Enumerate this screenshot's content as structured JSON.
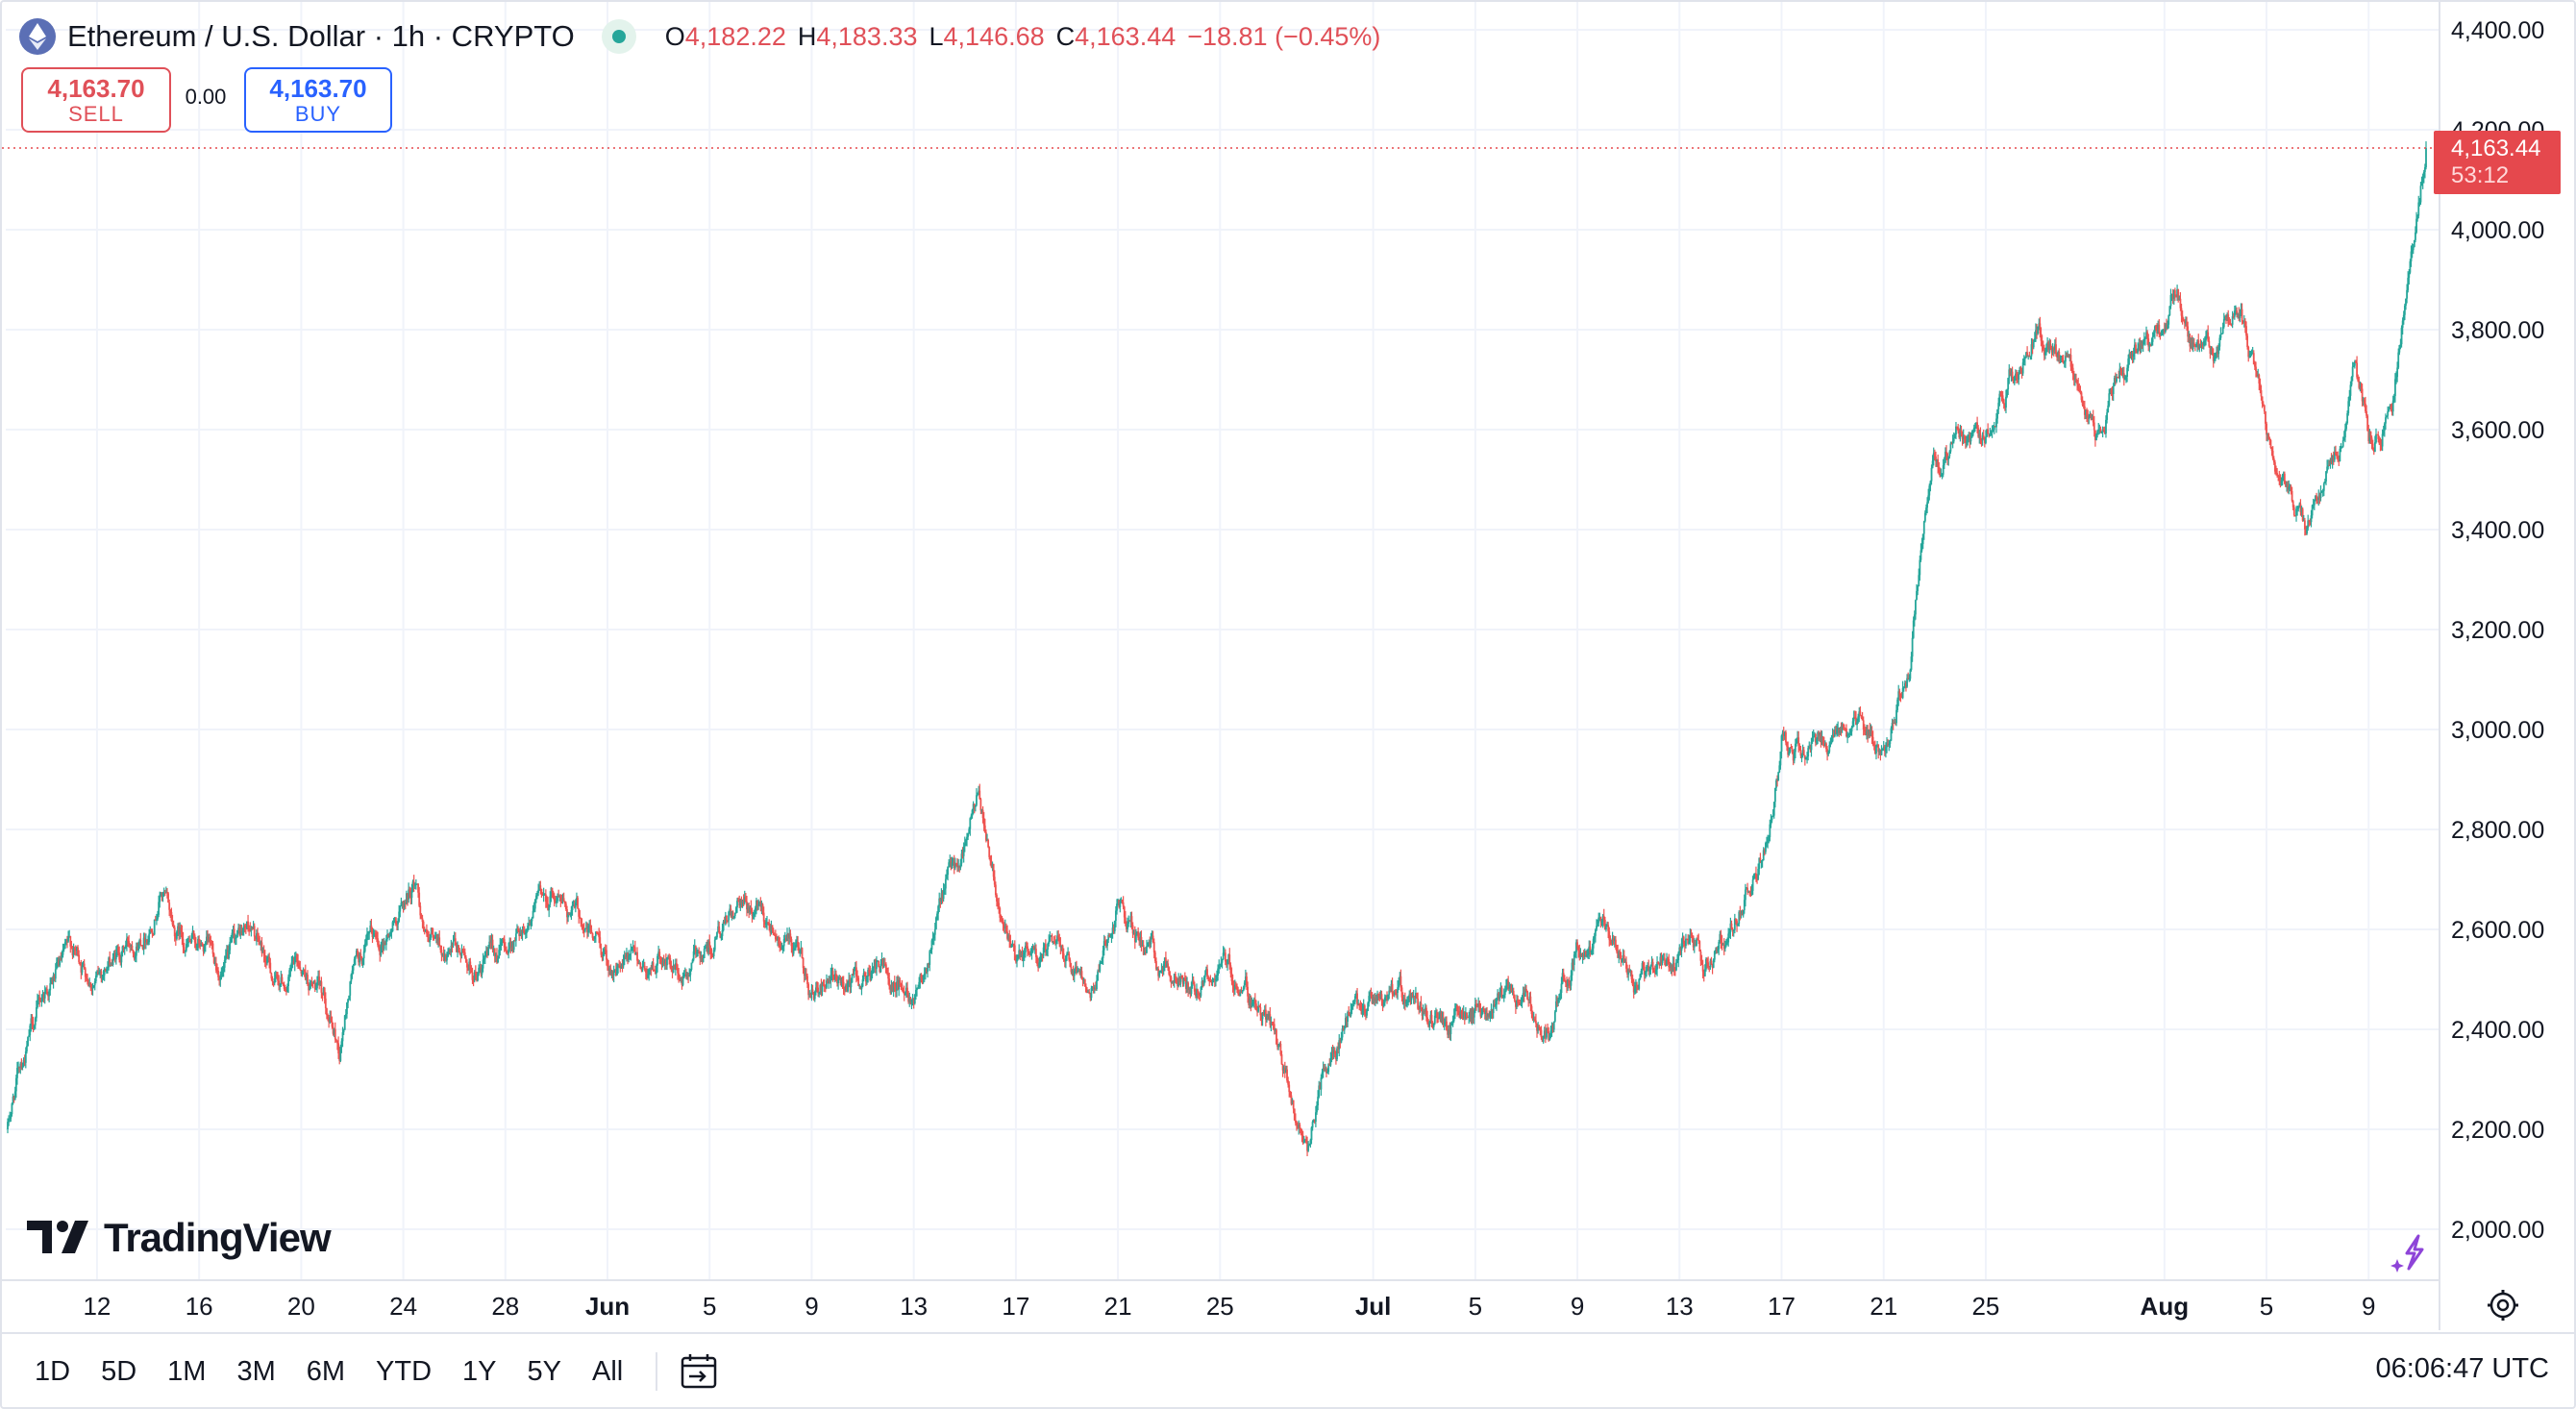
{
  "header": {
    "symbol_title": "Ethereum / U.S. Dollar · 1h · CRYPTO",
    "open_label": "O",
    "open": "4,182.22",
    "high_label": "H",
    "high": "4,183.33",
    "low_label": "L",
    "low": "4,146.68",
    "close_label": "C",
    "close": "4,163.44",
    "change": "−18.81 (−0.45%)"
  },
  "trade": {
    "sell_price": "4,163.70",
    "sell_label": "SELL",
    "spread": "0.00",
    "buy_price": "4,163.70",
    "buy_label": "BUY"
  },
  "price_tag": {
    "price": "4,163.44",
    "countdown": "53:12"
  },
  "logo": {
    "text": "TradingView"
  },
  "bottom_bar": {
    "ranges": [
      "1D",
      "5D",
      "1M",
      "3M",
      "6M",
      "YTD",
      "1Y",
      "5Y",
      "All"
    ],
    "clock": "06:06:47 UTC"
  },
  "colors": {
    "up": "#26a69a",
    "down": "#ef5350",
    "price_line": "#e5484d",
    "buy": "#2962ff"
  },
  "icons": {
    "symbol": "ethereum-icon",
    "live": "market-open-dot",
    "calendar": "goto-date-icon",
    "settings": "settings-gear-icon",
    "spark": "ai-sparkle-icon"
  },
  "chart_data": {
    "type": "candlestick",
    "interval": "1h",
    "ylim": [
      1950,
      4420
    ],
    "y_ticks": [
      2000,
      2200,
      2400,
      2600,
      2800,
      3000,
      3200,
      3400,
      3600,
      3800,
      4000,
      4200,
      4400
    ],
    "y_tick_labels": [
      "2,000.00",
      "2,200.00",
      "2,400.00",
      "2,600.00",
      "2,800.00",
      "3,000.00",
      "3,200.00",
      "3,400.00",
      "3,600.00",
      "3,800.00",
      "4,000.00",
      "4,200.00",
      "4,400.00"
    ],
    "x_tick_labels": [
      "12",
      "16",
      "20",
      "24",
      "28",
      "Jun",
      "5",
      "9",
      "13",
      "17",
      "21",
      "25",
      "Jul",
      "5",
      "9",
      "13",
      "17",
      "21",
      "25",
      "Aug",
      "5",
      "9"
    ],
    "x_tick_dates": [
      "2025-05-12",
      "2025-05-16",
      "2025-05-20",
      "2025-05-24",
      "2025-05-28",
      "2025-06-01",
      "2025-06-05",
      "2025-06-09",
      "2025-06-13",
      "2025-06-17",
      "2025-06-21",
      "2025-06-25",
      "2025-07-01",
      "2025-07-05",
      "2025-07-09",
      "2025-07-13",
      "2025-07-17",
      "2025-07-21",
      "2025-07-25",
      "2025-08-01",
      "2025-08-05",
      "2025-08-09"
    ],
    "x_range": [
      "2025-05-08T12:00",
      "2025-08-11T06:00"
    ],
    "last_price": 4163.44,
    "close_path": [
      [
        "2025-05-08T12:00",
        2200
      ],
      [
        "2025-05-09T00:00",
        2330
      ],
      [
        "2025-05-10T00:00",
        2480
      ],
      [
        "2025-05-11T00:00",
        2540
      ],
      [
        "2025-05-12T00:00",
        2510
      ],
      [
        "2025-05-13T00:00",
        2560
      ],
      [
        "2025-05-14T00:00",
        2620
      ],
      [
        "2025-05-14T12:00",
        2700
      ],
      [
        "2025-05-15T00:00",
        2600
      ],
      [
        "2025-05-16T00:00",
        2560
      ],
      [
        "2025-05-17T00:00",
        2520
      ],
      [
        "2025-05-18T00:00",
        2600
      ],
      [
        "2025-05-19T00:00",
        2490
      ],
      [
        "2025-05-20T00:00",
        2520
      ],
      [
        "2025-05-21T00:00",
        2450
      ],
      [
        "2025-05-21T12:00",
        2360
      ],
      [
        "2025-05-22T00:00",
        2520
      ],
      [
        "2025-05-23T00:00",
        2570
      ],
      [
        "2025-05-24T00:00",
        2650
      ],
      [
        "2025-05-24T12:00",
        2700
      ],
      [
        "2025-05-25T00:00",
        2560
      ],
      [
        "2025-05-26T00:00",
        2540
      ],
      [
        "2025-05-27T00:00",
        2520
      ],
      [
        "2025-05-28T00:00",
        2560
      ],
      [
        "2025-05-29T00:00",
        2650
      ],
      [
        "2025-05-30T00:00",
        2680
      ],
      [
        "2025-05-31T00:00",
        2620
      ],
      [
        "2025-06-01T00:00",
        2540
      ],
      [
        "2025-06-02T00:00",
        2520
      ],
      [
        "2025-06-03T00:00",
        2540
      ],
      [
        "2025-06-04T00:00",
        2500
      ],
      [
        "2025-06-05T00:00",
        2580
      ],
      [
        "2025-06-06T00:00",
        2620
      ],
      [
        "2025-06-07T00:00",
        2640
      ],
      [
        "2025-06-08T00:00",
        2600
      ],
      [
        "2025-06-09T00:00",
        2460
      ],
      [
        "2025-06-10T00:00",
        2480
      ],
      [
        "2025-06-11T00:00",
        2500
      ],
      [
        "2025-06-12T00:00",
        2520
      ],
      [
        "2025-06-13T00:00",
        2490
      ],
      [
        "2025-06-14T00:00",
        2640
      ],
      [
        "2025-06-15T00:00",
        2780
      ],
      [
        "2025-06-15T12:00",
        2850
      ],
      [
        "2025-06-16T00:00",
        2760
      ],
      [
        "2025-06-17T00:00",
        2520
      ],
      [
        "2025-06-18T00:00",
        2540
      ],
      [
        "2025-06-19T00:00",
        2560
      ],
      [
        "2025-06-20T00:00",
        2520
      ],
      [
        "2025-06-21T00:00",
        2650
      ],
      [
        "2025-06-22T00:00",
        2560
      ],
      [
        "2025-06-23T00:00",
        2520
      ],
      [
        "2025-06-24T00:00",
        2500
      ],
      [
        "2025-06-25T00:00",
        2530
      ],
      [
        "2025-06-26T00:00",
        2490
      ],
      [
        "2025-06-27T00:00",
        2400
      ],
      [
        "2025-06-27T12:00",
        2300
      ],
      [
        "2025-06-28T00:00",
        2220
      ],
      [
        "2025-06-28T12:00",
        2160
      ],
      [
        "2025-06-29T00:00",
        2300
      ],
      [
        "2025-06-30T00:00",
        2410
      ],
      [
        "2025-07-01T00:00",
        2440
      ],
      [
        "2025-07-02T00:00",
        2460
      ],
      [
        "2025-07-03T00:00",
        2420
      ],
      [
        "2025-07-04T00:00",
        2410
      ],
      [
        "2025-07-05T00:00",
        2430
      ],
      [
        "2025-07-06T00:00",
        2440
      ],
      [
        "2025-07-07T00:00",
        2470
      ],
      [
        "2025-07-08T00:00",
        2400
      ],
      [
        "2025-07-09T00:00",
        2580
      ],
      [
        "2025-07-10T00:00",
        2600
      ],
      [
        "2025-07-11T00:00",
        2500
      ],
      [
        "2025-07-12T00:00",
        2510
      ],
      [
        "2025-07-13T00:00",
        2550
      ],
      [
        "2025-07-14T00:00",
        2540
      ],
      [
        "2025-07-15T00:00",
        2600
      ],
      [
        "2025-07-16T00:00",
        2720
      ],
      [
        "2025-07-16T12:00",
        2810
      ],
      [
        "2025-07-17T00:00",
        2980
      ],
      [
        "2025-07-18T00:00",
        2950
      ],
      [
        "2025-07-19T00:00",
        2960
      ],
      [
        "2025-07-20T00:00",
        3020
      ],
      [
        "2025-07-21T00:00",
        2960
      ],
      [
        "2025-07-22T00:00",
        3130
      ],
      [
        "2025-07-22T12:00",
        3360
      ],
      [
        "2025-07-23T00:00",
        3520
      ],
      [
        "2025-07-24T00:00",
        3600
      ],
      [
        "2025-07-25T00:00",
        3580
      ],
      [
        "2025-07-26T00:00",
        3720
      ],
      [
        "2025-07-27T00:00",
        3800
      ],
      [
        "2025-07-28T00:00",
        3740
      ],
      [
        "2025-07-29T00:00",
        3640
      ],
      [
        "2025-07-29T12:00",
        3560
      ],
      [
        "2025-07-30T00:00",
        3700
      ],
      [
        "2025-07-31T00:00",
        3760
      ],
      [
        "2025-08-01T00:00",
        3800
      ],
      [
        "2025-08-01T12:00",
        3900
      ],
      [
        "2025-08-02T00:00",
        3780
      ],
      [
        "2025-08-03T00:00",
        3760
      ],
      [
        "2025-08-04T00:00",
        3820
      ],
      [
        "2025-08-04T12:00",
        3700
      ],
      [
        "2025-08-05T00:00",
        3580
      ],
      [
        "2025-08-06T00:00",
        3450
      ],
      [
        "2025-08-06T12:00",
        3400
      ],
      [
        "2025-08-07T00:00",
        3500
      ],
      [
        "2025-08-08T00:00",
        3600
      ],
      [
        "2025-08-08T12:00",
        3700
      ],
      [
        "2025-08-09T00:00",
        3580
      ],
      [
        "2025-08-09T12:00",
        3620
      ],
      [
        "2025-08-10T00:00",
        3680
      ],
      [
        "2025-08-10T12:00",
        3900
      ],
      [
        "2025-08-11T00:00",
        4050
      ],
      [
        "2025-08-11T06:00",
        4163
      ]
    ]
  }
}
